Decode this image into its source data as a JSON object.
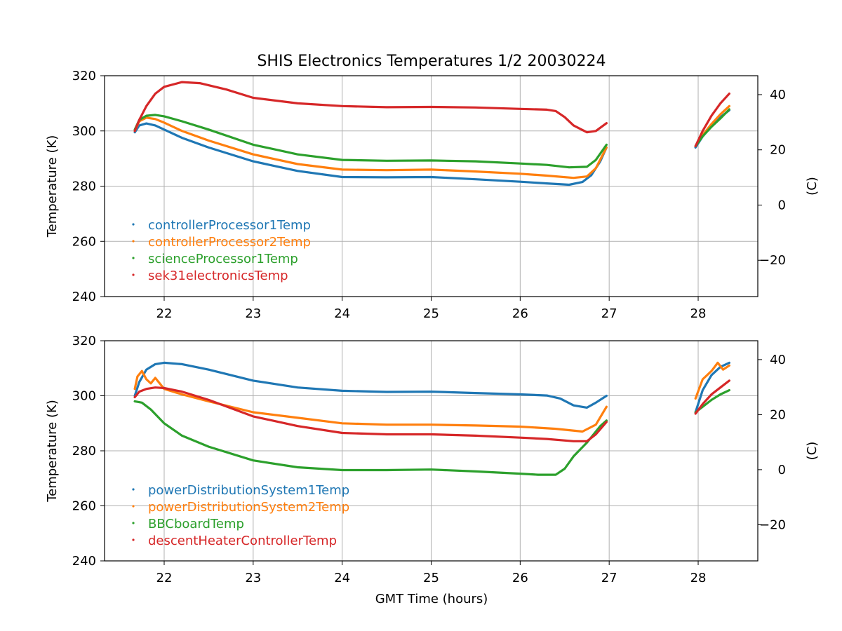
{
  "figure": {
    "title": "SHIS Electronics Temperatures 1/2 20030224",
    "xlabel": "GMT Time (hours)"
  },
  "chart_data": [
    {
      "type": "line",
      "title": "SHIS Electronics Temperatures 1/2 20030224",
      "xlabel": "",
      "ylabel": "Temperature (K)",
      "ylabel_right": "(C)",
      "xlim": [
        21.33,
        28.67
      ],
      "ylim": [
        240,
        320
      ],
      "ylim_right_c": [
        -33.15,
        46.85
      ],
      "xticks": [
        22,
        23,
        24,
        25,
        26,
        27,
        28
      ],
      "yticks": [
        240,
        260,
        280,
        300,
        320
      ],
      "yticks_right": [
        -20,
        0,
        20,
        40
      ],
      "yticks_right_labels": [
        "−20",
        "0",
        "20",
        "40"
      ],
      "grid": true,
      "legend_position": "lower-left",
      "series": [
        {
          "name": "controllerProcessor1Temp",
          "color": "#1f77b4",
          "segments": [
            [
              [
                21.67,
                299.5
              ],
              [
                21.72,
                302
              ],
              [
                21.8,
                302.7
              ],
              [
                21.9,
                302
              ],
              [
                22.0,
                300.5
              ],
              [
                22.2,
                297.5
              ],
              [
                22.5,
                294
              ],
              [
                23.0,
                289
              ],
              [
                23.5,
                285.5
              ],
              [
                24.0,
                283.3
              ],
              [
                24.5,
                283.2
              ],
              [
                25.0,
                283.3
              ],
              [
                25.5,
                282.5
              ],
              [
                26.0,
                281.6
              ],
              [
                26.3,
                281.0
              ],
              [
                26.55,
                280.5
              ],
              [
                26.7,
                281.5
              ],
              [
                26.8,
                284
              ],
              [
                26.9,
                289
              ],
              [
                26.97,
                294
              ]
            ],
            [
              [
                27.97,
                294
              ],
              [
                28.05,
                298
              ],
              [
                28.15,
                302
              ],
              [
                28.25,
                305
              ],
              [
                28.35,
                307.5
              ]
            ]
          ]
        },
        {
          "name": "controllerProcessor2Temp",
          "color": "#ff7f0e",
          "segments": [
            [
              [
                21.67,
                300
              ],
              [
                21.72,
                303.5
              ],
              [
                21.8,
                304.8
              ],
              [
                21.9,
                304.3
              ],
              [
                22.0,
                303
              ],
              [
                22.2,
                300
              ],
              [
                22.5,
                296.5
              ],
              [
                23.0,
                291.5
              ],
              [
                23.5,
                288
              ],
              [
                24.0,
                286
              ],
              [
                24.5,
                285.8
              ],
              [
                25.0,
                286
              ],
              [
                25.5,
                285.3
              ],
              [
                26.0,
                284.5
              ],
              [
                26.3,
                283.8
              ],
              [
                26.6,
                283.0
              ],
              [
                26.75,
                283.5
              ],
              [
                26.85,
                286.5
              ],
              [
                26.97,
                294
              ]
            ],
            [
              [
                27.97,
                294.5
              ],
              [
                28.05,
                298.5
              ],
              [
                28.15,
                302.5
              ],
              [
                28.25,
                306
              ],
              [
                28.35,
                309
              ]
            ]
          ]
        },
        {
          "name": "scienceProcessor1Temp",
          "color": "#2ca02c",
          "segments": [
            [
              [
                21.67,
                300.5
              ],
              [
                21.72,
                304
              ],
              [
                21.8,
                305.5
              ],
              [
                21.9,
                305.8
              ],
              [
                22.0,
                305.3
              ],
              [
                22.2,
                303.5
              ],
              [
                22.5,
                300.5
              ],
              [
                23.0,
                295
              ],
              [
                23.5,
                291.5
              ],
              [
                24.0,
                289.5
              ],
              [
                24.5,
                289.2
              ],
              [
                25.0,
                289.3
              ],
              [
                25.5,
                289
              ],
              [
                26.0,
                288.2
              ],
              [
                26.3,
                287.7
              ],
              [
                26.55,
                286.8
              ],
              [
                26.75,
                287
              ],
              [
                26.85,
                289.5
              ],
              [
                26.97,
                295
              ]
            ],
            [
              [
                27.97,
                294.5
              ],
              [
                28.05,
                298
              ],
              [
                28.15,
                301.5
              ],
              [
                28.25,
                304.5
              ],
              [
                28.35,
                307.8
              ]
            ]
          ]
        },
        {
          "name": "sek31electronicsTemp",
          "color": "#d62728",
          "segments": [
            [
              [
                21.67,
                300
              ],
              [
                21.72,
                304
              ],
              [
                21.8,
                309
              ],
              [
                21.9,
                313.5
              ],
              [
                22.0,
                316
              ],
              [
                22.2,
                317.7
              ],
              [
                22.4,
                317.3
              ],
              [
                22.7,
                315
              ],
              [
                23.0,
                312
              ],
              [
                23.5,
                310
              ],
              [
                24.0,
                309
              ],
              [
                24.5,
                308.6
              ],
              [
                25.0,
                308.7
              ],
              [
                25.5,
                308.5
              ],
              [
                26.0,
                308
              ],
              [
                26.3,
                307.7
              ],
              [
                26.4,
                307.2
              ],
              [
                26.5,
                305
              ],
              [
                26.6,
                302
              ],
              [
                26.75,
                299.5
              ],
              [
                26.85,
                300
              ],
              [
                26.97,
                302.8
              ]
            ],
            [
              [
                27.97,
                294.5
              ],
              [
                28.05,
                300
              ],
              [
                28.15,
                305.5
              ],
              [
                28.25,
                310
              ],
              [
                28.35,
                313.5
              ]
            ]
          ]
        }
      ]
    },
    {
      "type": "line",
      "title": "",
      "xlabel": "GMT Time (hours)",
      "ylabel": "Temperature (K)",
      "ylabel_right": "(C)",
      "xlim": [
        21.33,
        28.67
      ],
      "ylim": [
        240,
        320
      ],
      "ylim_right_c": [
        -33.15,
        46.85
      ],
      "xticks": [
        22,
        23,
        24,
        25,
        26,
        27,
        28
      ],
      "yticks": [
        240,
        260,
        280,
        300,
        320
      ],
      "yticks_right": [
        -20,
        0,
        20,
        40
      ],
      "yticks_right_labels": [
        "−20",
        "0",
        "20",
        "40"
      ],
      "grid": true,
      "legend_position": "lower-left",
      "series": [
        {
          "name": "powerDistributionSystem1Temp",
          "color": "#1f77b4",
          "segments": [
            [
              [
                21.67,
                300
              ],
              [
                21.72,
                305
              ],
              [
                21.8,
                309.5
              ],
              [
                21.9,
                311.5
              ],
              [
                22.0,
                312
              ],
              [
                22.2,
                311.5
              ],
              [
                22.5,
                309.5
              ],
              [
                23.0,
                305.5
              ],
              [
                23.5,
                303
              ],
              [
                24.0,
                301.8
              ],
              [
                24.5,
                301.4
              ],
              [
                25.0,
                301.5
              ],
              [
                25.5,
                301
              ],
              [
                26.0,
                300.5
              ],
              [
                26.3,
                300.1
              ],
              [
                26.45,
                299
              ],
              [
                26.6,
                296.5
              ],
              [
                26.75,
                295.7
              ],
              [
                26.85,
                297.5
              ],
              [
                26.97,
                300
              ]
            ],
            [
              [
                27.97,
                294
              ],
              [
                28.05,
                302
              ],
              [
                28.15,
                307.5
              ],
              [
                28.25,
                310.5
              ],
              [
                28.35,
                312
              ]
            ]
          ]
        },
        {
          "name": "powerDistributionSystem2Temp",
          "color": "#ff7f0e",
          "segments": [
            [
              [
                21.67,
                302.5
              ],
              [
                21.7,
                307
              ],
              [
                21.75,
                309
              ],
              [
                21.8,
                306
              ],
              [
                21.85,
                304.5
              ],
              [
                21.9,
                306.5
              ],
              [
                22.0,
                302.5
              ],
              [
                22.2,
                300.5
              ],
              [
                22.5,
                298
              ],
              [
                23.0,
                294
              ],
              [
                23.5,
                292
              ],
              [
                24.0,
                290
              ],
              [
                24.5,
                289.5
              ],
              [
                25.0,
                289.5
              ],
              [
                25.5,
                289.2
              ],
              [
                26.0,
                288.8
              ],
              [
                26.4,
                288
              ],
              [
                26.7,
                287
              ],
              [
                26.85,
                289.5
              ],
              [
                26.97,
                296
              ]
            ],
            [
              [
                27.97,
                299
              ],
              [
                28.05,
                306
              ],
              [
                28.15,
                309
              ],
              [
                28.22,
                312
              ],
              [
                28.28,
                309.5
              ],
              [
                28.35,
                311
              ]
            ]
          ]
        },
        {
          "name": "BBCboardTemp",
          "color": "#2ca02c",
          "segments": [
            [
              [
                21.67,
                298
              ],
              [
                21.75,
                297.5
              ],
              [
                21.85,
                295
              ],
              [
                22.0,
                290
              ],
              [
                22.2,
                285.5
              ],
              [
                22.5,
                281.5
              ],
              [
                23.0,
                276.5
              ],
              [
                23.5,
                274
              ],
              [
                24.0,
                273
              ],
              [
                24.5,
                273
              ],
              [
                25.0,
                273.2
              ],
              [
                25.5,
                272.5
              ],
              [
                26.0,
                271.7
              ],
              [
                26.2,
                271.3
              ],
              [
                26.4,
                271.3
              ],
              [
                26.5,
                273.5
              ],
              [
                26.6,
                278
              ],
              [
                26.75,
                283
              ],
              [
                26.9,
                289
              ],
              [
                26.97,
                291
              ]
            ],
            [
              [
                27.97,
                294
              ],
              [
                28.05,
                296
              ],
              [
                28.15,
                298.5
              ],
              [
                28.25,
                300.5
              ],
              [
                28.35,
                302
              ]
            ]
          ]
        },
        {
          "name": "descentHeaterControllerTemp",
          "color": "#d62728",
          "segments": [
            [
              [
                21.67,
                299.5
              ],
              [
                21.72,
                301.5
              ],
              [
                21.8,
                302.5
              ],
              [
                21.9,
                303
              ],
              [
                22.0,
                302.8
              ],
              [
                22.2,
                301.5
              ],
              [
                22.5,
                298.5
              ],
              [
                23.0,
                292.5
              ],
              [
                23.5,
                289
              ],
              [
                24.0,
                286.5
              ],
              [
                24.5,
                286
              ],
              [
                25.0,
                286
              ],
              [
                25.5,
                285.5
              ],
              [
                26.0,
                284.8
              ],
              [
                26.3,
                284.3
              ],
              [
                26.6,
                283.5
              ],
              [
                26.75,
                283.5
              ],
              [
                26.85,
                286
              ],
              [
                26.97,
                290.5
              ]
            ],
            [
              [
                27.97,
                293.5
              ],
              [
                28.05,
                297
              ],
              [
                28.15,
                300.5
              ],
              [
                28.25,
                303
              ],
              [
                28.35,
                305.5
              ]
            ]
          ]
        }
      ]
    }
  ]
}
